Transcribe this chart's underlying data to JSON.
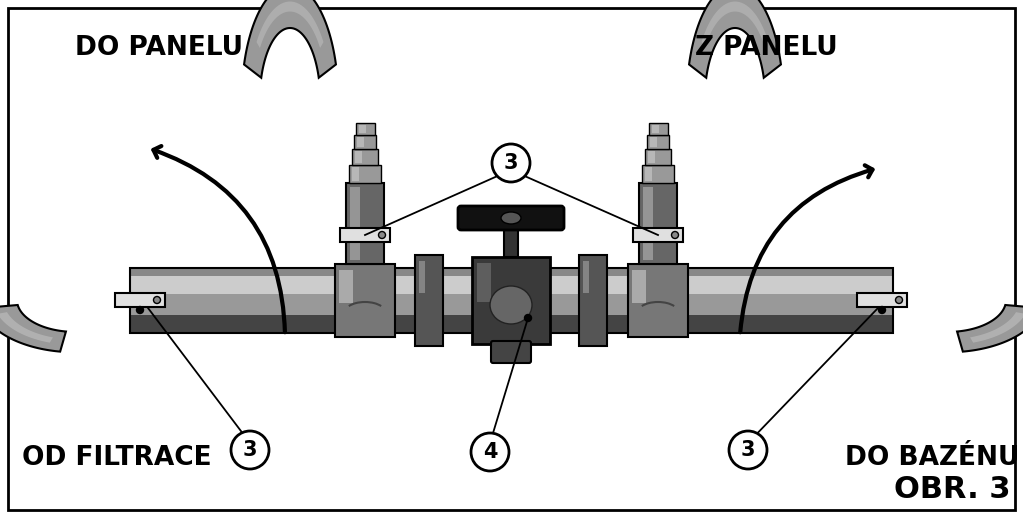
{
  "labels": {
    "do_panelu": "DO PANELU",
    "z_panelu": "Z PANELU",
    "od_filtrace": "OD FILTRACE",
    "do_bazenu": "DO BAZÉNU",
    "obr": "OBR. 3"
  },
  "colors": {
    "background": "#ffffff",
    "border": "#000000",
    "gray_hose": "#999999",
    "gray_hose_light": "#bbbbbb",
    "gray_hose_dark": "#777777",
    "black": "#000000",
    "white": "#ffffff",
    "pipe_body": "#888888",
    "pipe_light": "#cccccc",
    "pipe_dark": "#555555",
    "pipe_darker": "#333333",
    "valve_dark": "#222222",
    "valve_mid": "#555555",
    "valve_light": "#888888",
    "clamp_fill": "#e0e0e0"
  },
  "figsize": [
    10.23,
    5.18
  ],
  "dpi": 100
}
